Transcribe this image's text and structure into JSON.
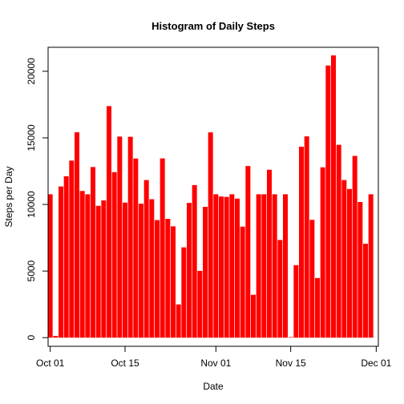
{
  "chart_data": {
    "type": "bar",
    "title": "Histogram of Daily Steps",
    "xlabel": "Date",
    "ylabel": "Steps per Day",
    "bar_color": "#ff0000",
    "x_ticks": [
      {
        "day": 0,
        "label": "Oct 01"
      },
      {
        "day": 14,
        "label": "Oct 15"
      },
      {
        "day": 31,
        "label": "Nov 01"
      },
      {
        "day": 45,
        "label": "Nov 15"
      },
      {
        "day": 61,
        "label": "Dec 01"
      }
    ],
    "y_ticks": [
      0,
      5000,
      10000,
      15000,
      20000
    ],
    "y_tick_labels": [
      "0",
      "5000",
      "10000",
      "15000",
      "20000"
    ],
    "xlim": [
      -0.4,
      61.4
    ],
    "ylim": [
      -650,
      21800
    ],
    "categories": [
      "2012-10-01",
      "2012-10-02",
      "2012-10-03",
      "2012-10-04",
      "2012-10-05",
      "2012-10-06",
      "2012-10-07",
      "2012-10-08",
      "2012-10-09",
      "2012-10-10",
      "2012-10-11",
      "2012-10-12",
      "2012-10-13",
      "2012-10-14",
      "2012-10-15",
      "2012-10-16",
      "2012-10-17",
      "2012-10-18",
      "2012-10-19",
      "2012-10-20",
      "2012-10-21",
      "2012-10-22",
      "2012-10-23",
      "2012-10-24",
      "2012-10-25",
      "2012-10-26",
      "2012-10-27",
      "2012-10-28",
      "2012-10-29",
      "2012-10-30",
      "2012-10-31",
      "2012-11-01",
      "2012-11-02",
      "2012-11-03",
      "2012-11-04",
      "2012-11-05",
      "2012-11-06",
      "2012-11-07",
      "2012-11-08",
      "2012-11-09",
      "2012-11-10",
      "2012-11-11",
      "2012-11-12",
      "2012-11-13",
      "2012-11-14",
      "2012-11-15",
      "2012-11-16",
      "2012-11-17",
      "2012-11-18",
      "2012-11-19",
      "2012-11-20",
      "2012-11-21",
      "2012-11-22",
      "2012-11-23",
      "2012-11-24",
      "2012-11-25",
      "2012-11-26",
      "2012-11-27",
      "2012-11-28",
      "2012-11-29",
      "2012-11-30"
    ],
    "values": [
      10766,
      126,
      11352,
      12116,
      13294,
      15420,
      11015,
      10766,
      12811,
      9900,
      10304,
      17382,
      12426,
      15098,
      10139,
      15084,
      13452,
      10056,
      11829,
      10395,
      8821,
      13460,
      8918,
      8355,
      2492,
      6778,
      10119,
      11458,
      5018,
      9819,
      15414,
      10766,
      10600,
      10571,
      10766,
      10439,
      8334,
      12883,
      3219,
      10766,
      10766,
      12608,
      10765,
      7336,
      10766,
      41,
      5441,
      14339,
      15110,
      8841,
      4472,
      12787,
      20427,
      21194,
      14478,
      11834,
      11162,
      13646,
      10183,
      7047,
      10766
    ]
  }
}
